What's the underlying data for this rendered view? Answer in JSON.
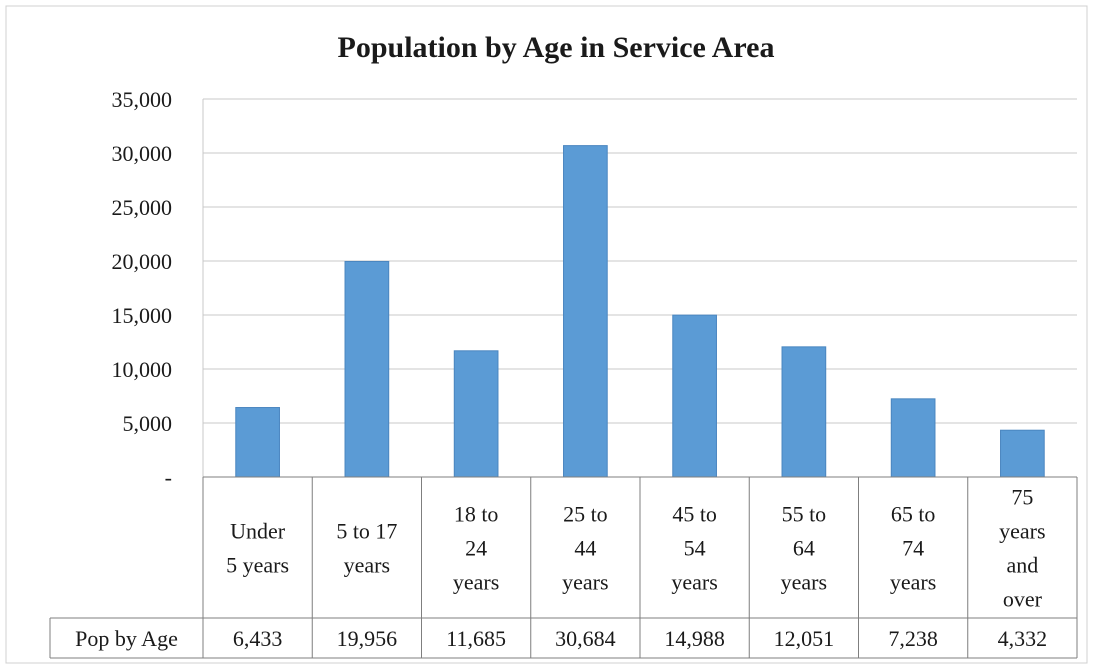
{
  "chart_data": {
    "type": "bar",
    "title": "Population by Age in Service Area",
    "categories": [
      [
        "Under",
        "5 years"
      ],
      [
        "5 to 17",
        "years"
      ],
      [
        "18 to",
        "24",
        "years"
      ],
      [
        "25 to",
        "44",
        "years"
      ],
      [
        "45 to",
        "54",
        "years"
      ],
      [
        "55 to",
        "64",
        "years"
      ],
      [
        "65 to",
        "74",
        "years"
      ],
      [
        "75",
        "years",
        "and",
        "over"
      ]
    ],
    "series": [
      {
        "name": "Pop by Age",
        "values": [
          6433,
          19956,
          11685,
          30684,
          14988,
          12051,
          7238,
          4332
        ],
        "value_labels": [
          "6,433",
          "19,956",
          "11,685",
          "30,684",
          "14,988",
          "12,051",
          "7,238",
          "4,332"
        ]
      }
    ],
    "ylim": [
      0,
      35000
    ],
    "yticks": [
      0,
      5000,
      10000,
      15000,
      20000,
      25000,
      30000,
      35000
    ],
    "ytick_labels": [
      "-",
      "5,000",
      "10,000",
      "15,000",
      "20,000",
      "25,000",
      "30,000",
      "35,000"
    ],
    "grid": true,
    "data_table": true,
    "bar_color": "#5b9bd5",
    "bar_edge_color": "#4a86c0",
    "grid_color": "#c8c8c8",
    "table_border_color": "#7f7f7f"
  }
}
